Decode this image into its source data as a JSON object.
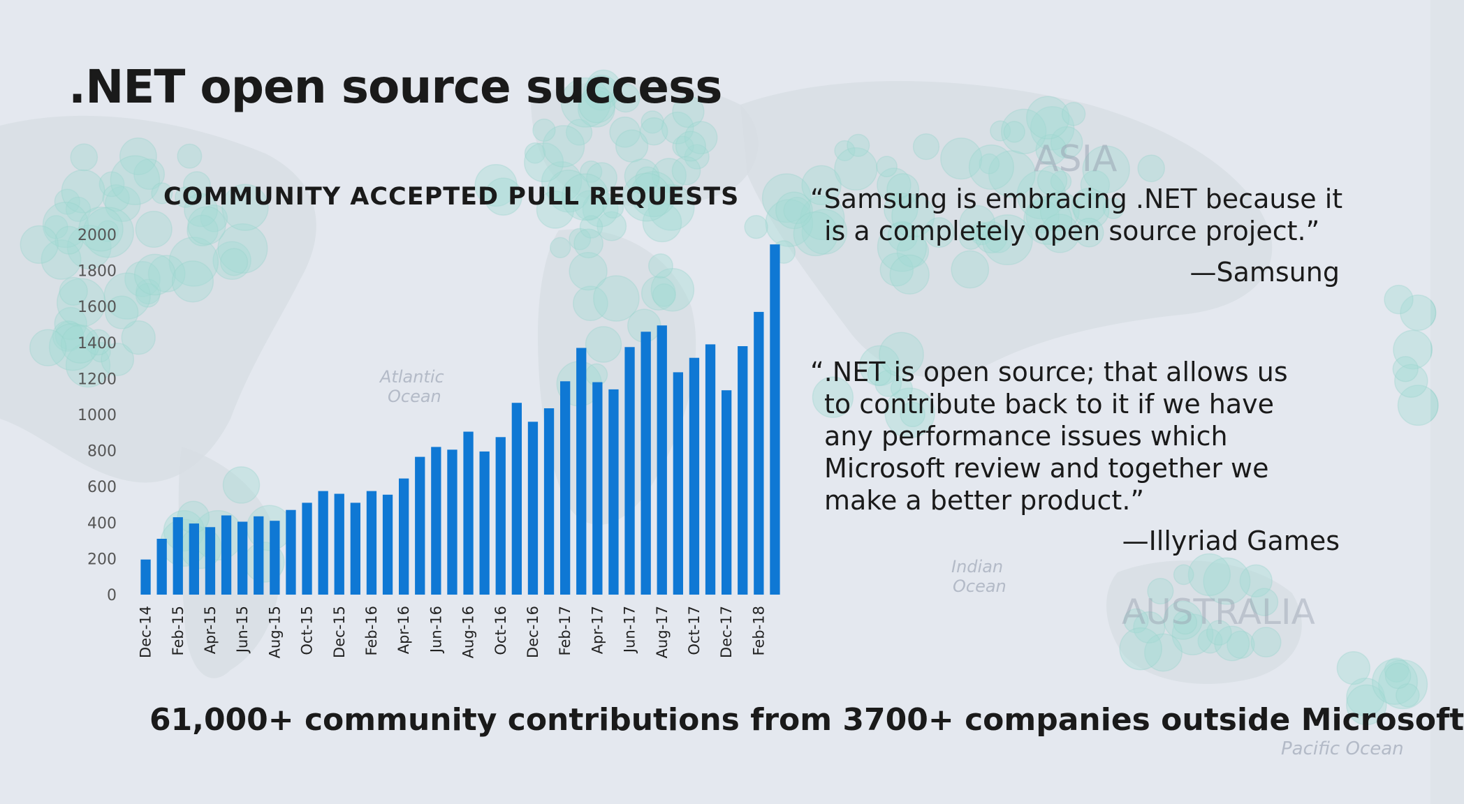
{
  "slide": {
    "title": ".NET open source success",
    "footer": "61,000+ community contributions from 3700+ companies outside Microsoft"
  },
  "map_labels": {
    "asia": "ASIA",
    "atlantic": "Atlantic",
    "atlantic2": "Ocean",
    "indian": "Indian",
    "indian2": "Ocean",
    "australia": "AUSTRALIA",
    "pacific": "Pacific Ocean"
  },
  "quotes": [
    {
      "lines": [
        "“Samsung is embracing .NET because it",
        "is a completely open source project.”"
      ],
      "author": "—Samsung"
    },
    {
      "lines": [
        "“.NET is open source; that allows us",
        "to contribute back to it if we have",
        "any performance issues which",
        "Microsoft review and together we",
        "make a better product.”"
      ],
      "author": "—Illyriad Games"
    }
  ],
  "colors": {
    "bar": "#0f78d4",
    "axis_text": "#555555",
    "bubble": "#7fd3c4",
    "land": "#cfd5dc"
  },
  "chart_data": {
    "type": "bar",
    "title": "COMMUNITY ACCEPTED PULL REQUESTS",
    "xlabel": "",
    "ylabel": "",
    "ylim": [
      0,
      2000
    ],
    "yticks": [
      0,
      200,
      400,
      600,
      800,
      1000,
      1200,
      1400,
      1600,
      1800,
      2000
    ],
    "grid": false,
    "categories": [
      "Dec-14",
      "Jan-15",
      "Feb-15",
      "Mar-15",
      "Apr-15",
      "May-15",
      "Jun-15",
      "Jul-15",
      "Aug-15",
      "Sep-15",
      "Oct-15",
      "Nov-15",
      "Dec-15",
      "Jan-16",
      "Feb-16",
      "Mar-16",
      "Apr-16",
      "May-16",
      "Jun-16",
      "Jul-16",
      "Aug-16",
      "Sep-16",
      "Oct-16",
      "Nov-16",
      "Dec-16",
      "Jan-17",
      "Feb-17",
      "Mar-17",
      "Apr-17",
      "May-17",
      "Jun-17",
      "Jul-17",
      "Aug-17",
      "Sep-17",
      "Oct-17",
      "Nov-17",
      "Dec-17",
      "Jan-18",
      "Feb-18",
      "Mar-18"
    ],
    "visible_tick_labels": [
      "Dec-14",
      "Feb-15",
      "Apr-15",
      "Jun-15",
      "Aug-15",
      "Oct-15",
      "Dec-15",
      "Feb-16",
      "Apr-16",
      "Jun-16",
      "Aug-16",
      "Oct-16",
      "Dec-16",
      "Feb-17",
      "Apr-17",
      "Jun-17",
      "Aug-17",
      "Oct-17",
      "Dec-17",
      "Feb-18"
    ],
    "values": [
      195,
      310,
      430,
      395,
      375,
      440,
      405,
      435,
      410,
      470,
      510,
      575,
      560,
      510,
      575,
      555,
      645,
      765,
      820,
      805,
      905,
      795,
      875,
      1065,
      960,
      1035,
      1185,
      1370,
      1180,
      1140,
      1375,
      1460,
      1495,
      1235,
      1315,
      1390,
      1135,
      1380,
      1570,
      1945
    ]
  }
}
